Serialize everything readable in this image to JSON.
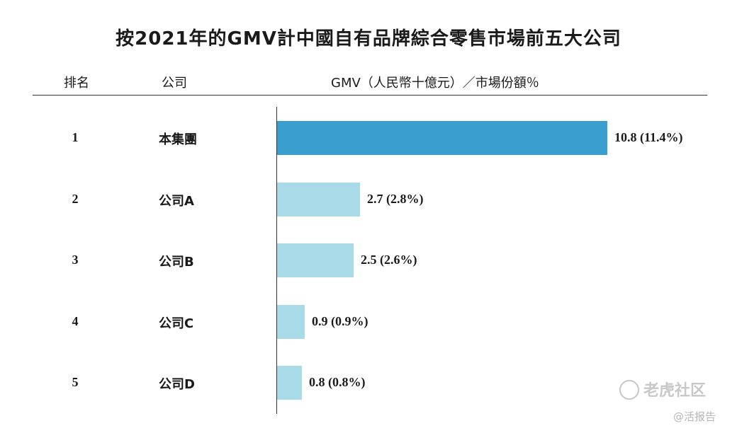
{
  "title": "按2021年的GMV計中國自有品牌綜合零售市場前五大公司",
  "headers": {
    "rank": "排名",
    "company": "公司",
    "gmv": "GMV（人民幣十億元）／市場份額％"
  },
  "chart_data": {
    "type": "bar",
    "orientation": "horizontal",
    "title": "按2021年的GMV計中國自有品牌綜合零售市場前五大公司",
    "ranks": [
      "1",
      "2",
      "3",
      "4",
      "5"
    ],
    "categories": [
      "本集團",
      "公司A",
      "公司B",
      "公司C",
      "公司D"
    ],
    "values": [
      10.8,
      2.7,
      2.5,
      0.9,
      0.8
    ],
    "labels": [
      "10.8 (11.4%)",
      "2.7 (2.8%)",
      "2.5 (2.6%)",
      "0.9 (0.9%)",
      "0.8 (0.8%)"
    ],
    "market_share_pct": [
      11.4,
      2.8,
      2.6,
      0.9,
      0.8
    ],
    "colors": [
      "#3a9fcf",
      "#a8dbe7",
      "#a8dbe7",
      "#a8dbe7",
      "#a8dbe7"
    ],
    "xlim": [
      0,
      10.8
    ]
  },
  "watermark": {
    "main": "老虎社区",
    "sub": "@活报告",
    "icon": "tiger-community-icon"
  }
}
